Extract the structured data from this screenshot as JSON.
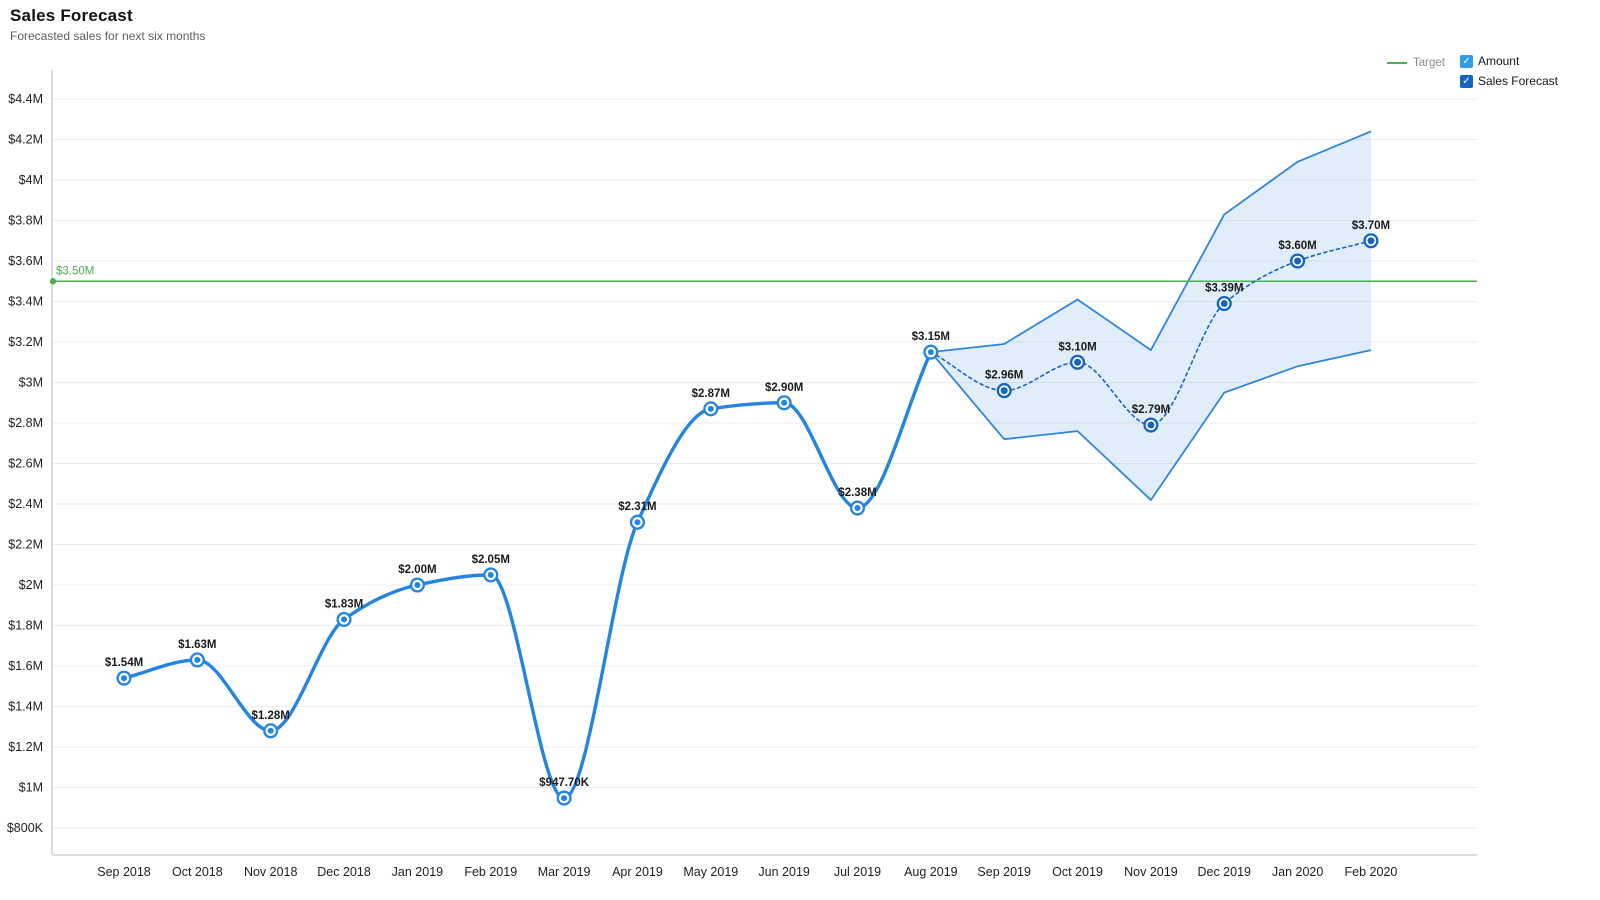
{
  "header": {
    "title": "Sales Forecast",
    "subtitle": "Forecasted sales for next six months"
  },
  "legend": {
    "target_label": "Target",
    "checkmark": "✓",
    "items": [
      {
        "label": "Amount",
        "color": "#2f9ce4"
      },
      {
        "label": "Sales Forecast",
        "color": "#1565c0"
      }
    ]
  },
  "chart_data": {
    "type": "line",
    "title": "Sales Forecast",
    "categories": [
      "Sep 2018",
      "Oct 2018",
      "Nov 2018",
      "Dec 2018",
      "Jan 2019",
      "Feb 2019",
      "Mar 2019",
      "Apr 2019",
      "May 2019",
      "Jun 2019",
      "Jul 2019",
      "Aug 2019",
      "Sep 2019",
      "Oct 2019",
      "Nov 2019",
      "Dec 2019",
      "Jan 2020",
      "Feb 2020"
    ],
    "ylim": [
      0.8,
      4.4
    ],
    "y_ticks": [
      {
        "value": 0.8,
        "label": "$800K"
      },
      {
        "value": 1.0,
        "label": "$1M"
      },
      {
        "value": 1.2,
        "label": "$1.2M"
      },
      {
        "value": 1.4,
        "label": "$1.4M"
      },
      {
        "value": 1.6,
        "label": "$1.6M"
      },
      {
        "value": 1.8,
        "label": "$1.8M"
      },
      {
        "value": 2.0,
        "label": "$2M"
      },
      {
        "value": 2.2,
        "label": "$2.2M"
      },
      {
        "value": 2.4,
        "label": "$2.4M"
      },
      {
        "value": 2.6,
        "label": "$2.6M"
      },
      {
        "value": 2.8,
        "label": "$2.8M"
      },
      {
        "value": 3.0,
        "label": "$3M"
      },
      {
        "value": 3.2,
        "label": "$3.2M"
      },
      {
        "value": 3.4,
        "label": "$3.4M"
      },
      {
        "value": 3.6,
        "label": "$3.6M"
      },
      {
        "value": 3.8,
        "label": "$3.8M"
      },
      {
        "value": 4.0,
        "label": "$4M"
      },
      {
        "value": 4.2,
        "label": "$4.2M"
      },
      {
        "value": 4.4,
        "label": "$4.4M"
      }
    ],
    "series": [
      {
        "name": "Amount",
        "style": "solid",
        "color": "#2484e4",
        "width": 3.4,
        "x_indices": [
          0,
          1,
          2,
          3,
          4,
          5,
          6,
          7,
          8,
          9,
          10,
          11
        ],
        "values": [
          1.54,
          1.63,
          1.28,
          1.83,
          2.0,
          2.05,
          0.9477,
          2.31,
          2.87,
          2.9,
          2.38,
          3.15
        ],
        "labels": [
          "$1.54M",
          "$1.63M",
          "$1.28M",
          "$1.83M",
          "$2.00M",
          "$2.05M",
          "$947.70K",
          "$2.31M",
          "$2.87M",
          "$2.90M",
          "$2.38M",
          "$3.15M"
        ],
        "marker_skip": []
      },
      {
        "name": "Sales Forecast",
        "style": "dotted",
        "color": "#1565c0",
        "width": 1.6,
        "x_indices": [
          11,
          12,
          13,
          14,
          15,
          16,
          17
        ],
        "values": [
          3.15,
          2.96,
          3.1,
          2.79,
          3.39,
          3.6,
          3.7
        ],
        "labels": [
          "",
          "$2.96M",
          "$3.10M",
          "$2.79M",
          "$3.39M",
          "$3.60M",
          "$3.70M"
        ],
        "marker_skip": [
          0
        ]
      }
    ],
    "band": {
      "name": "forecast-confidence-band",
      "x_indices": [
        11,
        12,
        13,
        14,
        15,
        16,
        17
      ],
      "upper": [
        3.15,
        3.19,
        3.41,
        3.16,
        3.83,
        4.09,
        4.24
      ],
      "lower": [
        3.15,
        2.72,
        2.76,
        2.42,
        2.95,
        3.08,
        3.16
      ],
      "stroke": "#2e86de",
      "fill": "#2e86de",
      "fill_opacity": 0.14
    },
    "target": {
      "value": 3.5,
      "label": "$3.50M",
      "color": "#4caf50"
    },
    "legend_position": "top-right",
    "grid": true
  }
}
